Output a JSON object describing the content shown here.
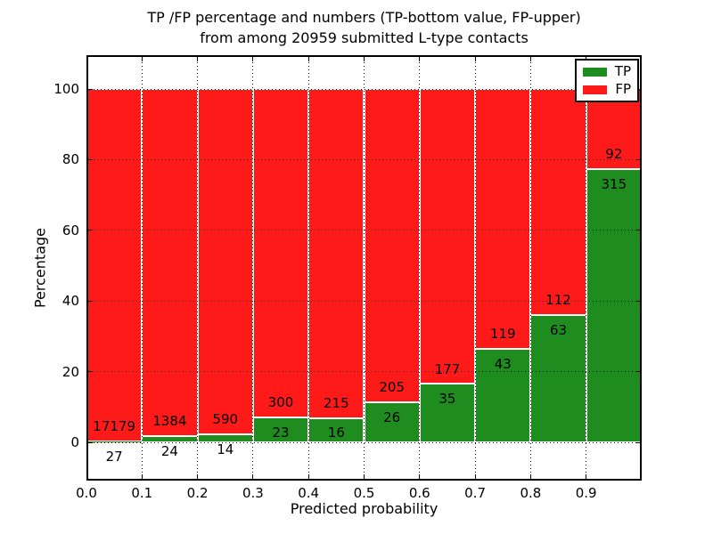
{
  "chart_data": {
    "type": "bar",
    "stacked": true,
    "normalized": "each bin stacked to 100%",
    "title": "TP /FP percentage and numbers (TP-bottom value, FP-upper)",
    "subtitle": "from among 20959 submitted L-type contacts",
    "xlabel": "Predicted probability",
    "ylabel": "Percentage",
    "xlim": [
      0.0,
      1.0
    ],
    "ylim": [
      -11,
      110
    ],
    "xticks": [
      0.0,
      0.1,
      0.2,
      0.3,
      0.4,
      0.5,
      0.6,
      0.7,
      0.8,
      0.9
    ],
    "xtick_labels": [
      "0.0",
      "0.1",
      "0.2",
      "0.3",
      "0.4",
      "0.5",
      "0.6",
      "0.7",
      "0.8",
      "0.9"
    ],
    "yticks": [
      0,
      20,
      40,
      60,
      80,
      100
    ],
    "ytick_labels": [
      "0",
      "20",
      "40",
      "60",
      "80",
      "100"
    ],
    "grid": {
      "style": "dotted",
      "color": "#000000",
      "on": true
    },
    "legend_position": "upper right",
    "total_contacts": 20959,
    "series": [
      {
        "name": "TP",
        "color": "#1f8c1f",
        "position": "bottom"
      },
      {
        "name": "FP",
        "color": "#ff1a1a",
        "position": "top"
      }
    ],
    "bins": [
      {
        "range": "0.0-0.1",
        "tp": 27,
        "fp": 17179,
        "tp_percent": 0.16
      },
      {
        "range": "0.1-0.2",
        "tp": 24,
        "fp": 1384,
        "tp_percent": 1.7
      },
      {
        "range": "0.2-0.3",
        "tp": 14,
        "fp": 590,
        "tp_percent": 2.32
      },
      {
        "range": "0.3-0.4",
        "tp": 23,
        "fp": 300,
        "tp_percent": 7.12
      },
      {
        "range": "0.4-0.5",
        "tp": 16,
        "fp": 215,
        "tp_percent": 6.93
      },
      {
        "range": "0.5-0.6",
        "tp": 26,
        "fp": 205,
        "tp_percent": 11.26
      },
      {
        "range": "0.6-0.7",
        "tp": 35,
        "fp": 177,
        "tp_percent": 16.51
      },
      {
        "range": "0.7-0.8",
        "tp": 43,
        "fp": 119,
        "tp_percent": 26.54
      },
      {
        "range": "0.8-0.9",
        "tp": 63,
        "fp": 112,
        "tp_percent": 36.0
      },
      {
        "range": "0.9-1.0",
        "tp": 315,
        "fp": 92,
        "tp_percent": 77.4
      }
    ]
  }
}
